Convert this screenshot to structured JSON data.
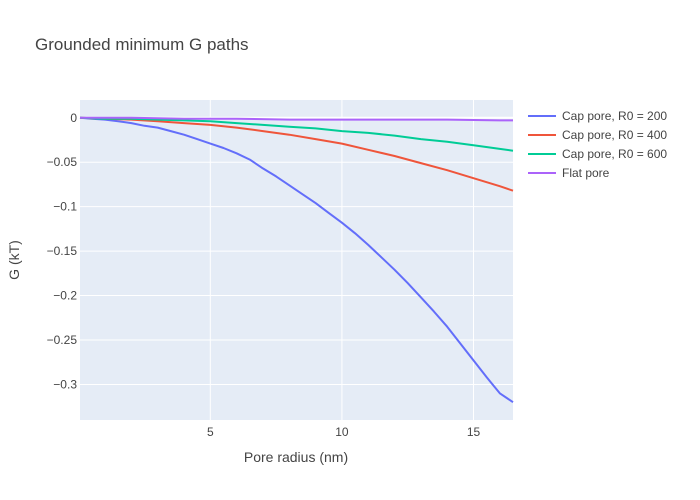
{
  "chart_data": {
    "type": "line",
    "title": "Grounded minimum G paths",
    "xlabel": "Pore radius (nm)",
    "ylabel": "G (kT)",
    "xlim": [
      0.05,
      16.5
    ],
    "ylim": [
      -0.34,
      0.02
    ],
    "x_ticks": [
      5,
      10,
      15
    ],
    "x_tick_labels": [
      "5",
      "10",
      "15"
    ],
    "y_ticks": [
      0,
      -0.05,
      -0.1,
      -0.15,
      -0.2,
      -0.25,
      -0.3
    ],
    "y_tick_labels": [
      "0",
      "−0.05",
      "−0.1",
      "−0.15",
      "−0.2",
      "−0.25",
      "−0.3"
    ],
    "grid": true,
    "legend_position": "right",
    "series": [
      {
        "name": "Cap pore, R0 = 200",
        "color": "#636efa",
        "x": [
          0.05,
          0.5,
          1,
          1.5,
          2,
          2.5,
          3,
          3.5,
          4,
          4.5,
          5,
          5.5,
          6,
          6.5,
          7,
          7.5,
          8,
          8.5,
          9,
          9.5,
          10,
          10.5,
          11,
          11.5,
          12,
          12.5,
          13,
          13.5,
          14,
          14.5,
          15,
          15.5,
          16,
          16.5
        ],
        "values": [
          0,
          -0.001,
          -0.002,
          -0.004,
          -0.006,
          -0.009,
          -0.011,
          -0.015,
          -0.019,
          -0.024,
          -0.029,
          -0.034,
          -0.04,
          -0.047,
          -0.057,
          -0.066,
          -0.076,
          -0.086,
          -0.096,
          -0.107,
          -0.118,
          -0.13,
          -0.143,
          -0.157,
          -0.171,
          -0.186,
          -0.202,
          -0.218,
          -0.235,
          -0.254,
          -0.273,
          -0.292,
          -0.31,
          -0.32
        ]
      },
      {
        "name": "Cap pore, R0 = 400",
        "color": "#ef553b",
        "x": [
          0.05,
          1,
          2,
          3,
          4,
          5,
          6,
          7,
          8,
          9,
          10,
          11,
          12,
          13,
          14,
          15,
          16,
          16.5
        ],
        "values": [
          0,
          -0.001,
          -0.002,
          -0.004,
          -0.006,
          -0.008,
          -0.011,
          -0.015,
          -0.019,
          -0.024,
          -0.029,
          -0.036,
          -0.043,
          -0.051,
          -0.059,
          -0.068,
          -0.077,
          -0.082
        ]
      },
      {
        "name": "Cap pore, R0 = 600",
        "color": "#00cc96",
        "x": [
          0.05,
          1,
          2,
          3,
          4,
          5,
          6,
          7,
          8,
          9,
          10,
          11,
          12,
          13,
          14,
          15,
          16,
          16.5
        ],
        "values": [
          0,
          -0.001,
          -0.001,
          -0.002,
          -0.003,
          -0.004,
          -0.006,
          -0.008,
          -0.01,
          -0.012,
          -0.015,
          -0.017,
          -0.02,
          -0.024,
          -0.027,
          -0.031,
          -0.035,
          -0.037
        ]
      },
      {
        "name": "Flat pore",
        "color": "#ab63fa",
        "x": [
          0.05,
          2,
          4,
          6,
          8,
          10,
          12,
          14,
          16,
          16.5
        ],
        "values": [
          0,
          0,
          -0.001,
          -0.001,
          -0.002,
          -0.002,
          -0.002,
          -0.002,
          -0.003,
          -0.003
        ]
      }
    ]
  }
}
